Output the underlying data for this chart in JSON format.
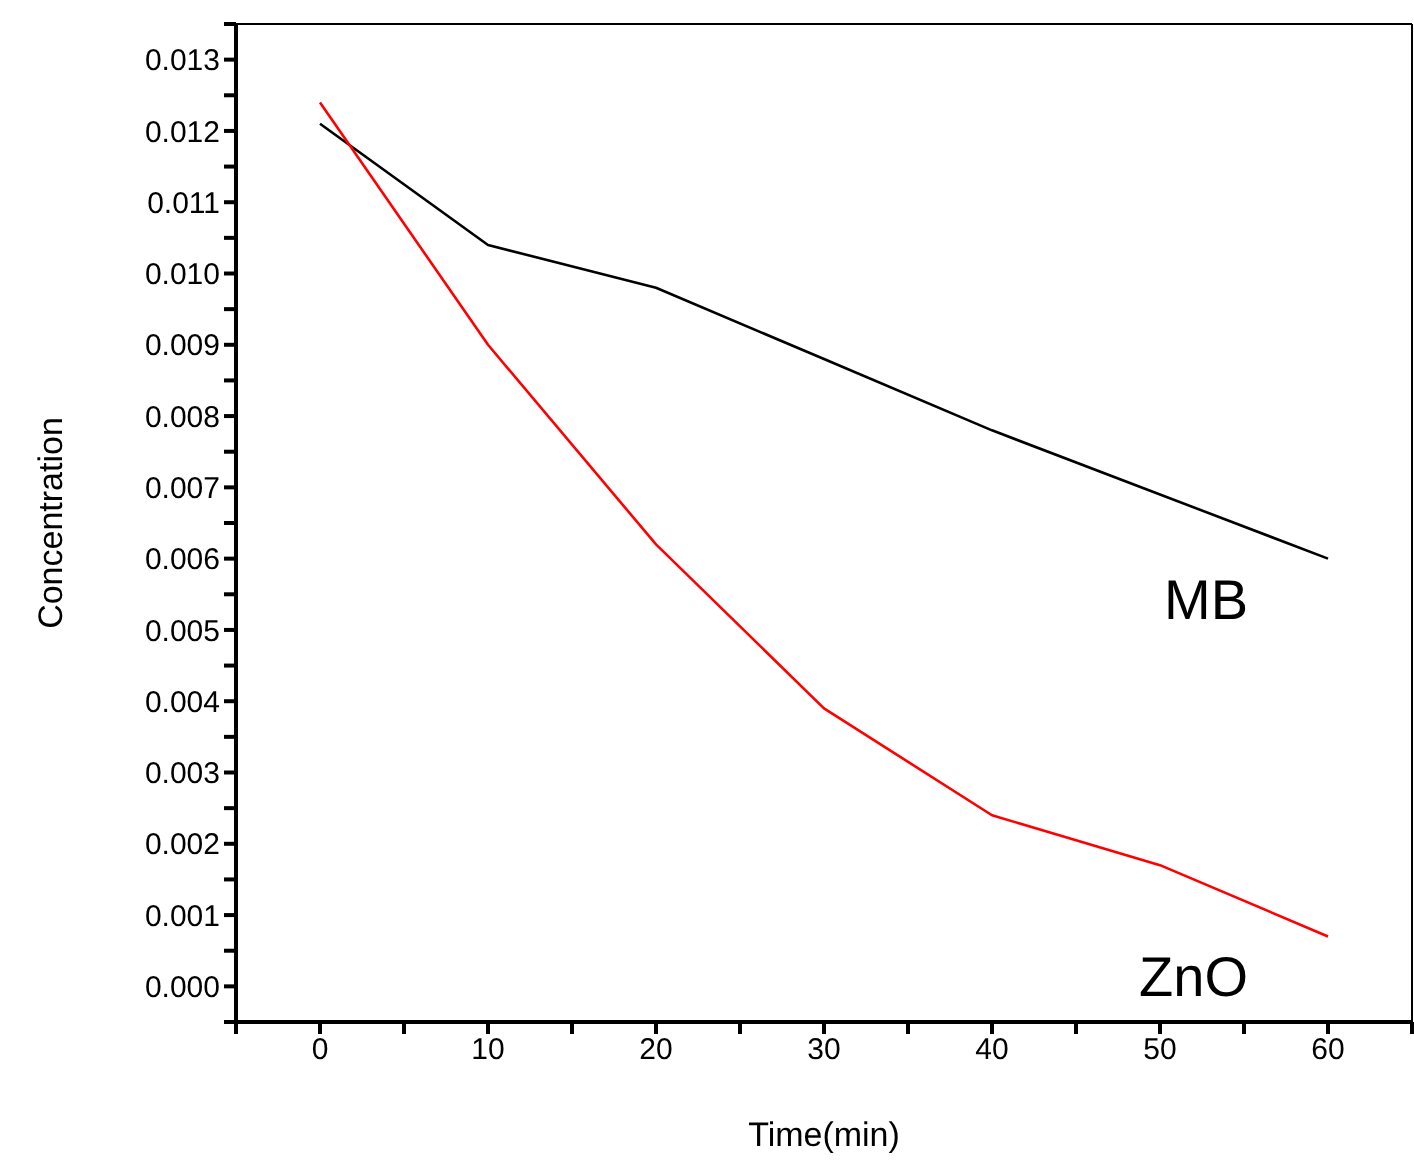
{
  "chart_data": {
    "type": "line",
    "xlabel": "Time(min)",
    "ylabel": "Concentration",
    "x": [
      0,
      10,
      20,
      30,
      40,
      50,
      60
    ],
    "series": [
      {
        "name": "MB",
        "color": "#000000",
        "values": [
          0.0121,
          0.0104,
          0.0098,
          0.0088,
          0.0078,
          0.0069,
          0.006
        ]
      },
      {
        "name": "ZnO",
        "color": "#ff0000",
        "values": [
          0.0124,
          0.009,
          0.0062,
          0.0039,
          0.0024,
          0.0017,
          0.0007
        ]
      }
    ],
    "xlim": [
      -5,
      65
    ],
    "xticks": [
      {
        "value": -5,
        "label": null
      },
      0,
      {
        "value": 5,
        "label": null
      },
      10,
      {
        "value": 15,
        "label": null
      },
      20,
      {
        "value": 25,
        "label": null
      },
      30,
      {
        "value": 35,
        "label": null
      },
      40,
      {
        "value": 45,
        "label": null
      },
      50,
      {
        "value": 55,
        "label": null
      },
      60,
      {
        "value": 65,
        "label": null
      }
    ],
    "ylim": [
      -0.0005,
      0.0135
    ],
    "yticks": [
      {
        "value": -0.0005,
        "label": null
      },
      {
        "value": 0,
        "label": "0.000"
      },
      {
        "value": 0.0005,
        "label": null
      },
      {
        "value": 0.001,
        "label": "0.001"
      },
      {
        "value": 0.0015,
        "label": null
      },
      {
        "value": 0.002,
        "label": "0.002"
      },
      {
        "value": 0.0025,
        "label": null
      },
      {
        "value": 0.003,
        "label": "0.003"
      },
      {
        "value": 0.0035,
        "label": null
      },
      {
        "value": 0.004,
        "label": "0.004"
      },
      {
        "value": 0.0045,
        "label": null
      },
      {
        "value": 0.005,
        "label": "0.005"
      },
      {
        "value": 0.0055,
        "label": null
      },
      {
        "value": 0.006,
        "label": "0.006"
      },
      {
        "value": 0.0065,
        "label": null
      },
      {
        "value": 0.007,
        "label": "0.007"
      },
      {
        "value": 0.0075,
        "label": null
      },
      {
        "value": 0.008,
        "label": "0.008"
      },
      {
        "value": 0.0085,
        "label": null
      },
      {
        "value": 0.009,
        "label": "0.009"
      },
      {
        "value": 0.0095,
        "label": null
      },
      {
        "value": 0.01,
        "label": "0.010"
      },
      {
        "value": 0.0105,
        "label": null
      },
      {
        "value": 0.011,
        "label": "0.011"
      },
      {
        "value": 0.0115,
        "label": null
      },
      {
        "value": 0.012,
        "label": "0.012"
      },
      {
        "value": 0.0125,
        "label": null
      },
      {
        "value": 0.013,
        "label": "0.013"
      },
      {
        "value": 0.0135,
        "label": null
      }
    ],
    "grid": false,
    "legend": false,
    "marker": "none",
    "line_style": "solid"
  }
}
